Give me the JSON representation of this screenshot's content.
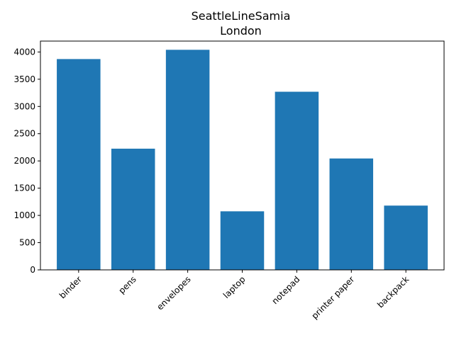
{
  "chart_data": {
    "type": "bar",
    "title": [
      "SeattleLineSamia",
      "London"
    ],
    "xlabel": "",
    "ylabel": "",
    "categories": [
      "binder",
      "pens",
      "envelopes",
      "laptop",
      "notepad",
      "printer paper",
      "backpack"
    ],
    "values": [
      3870,
      2225,
      4040,
      1075,
      3270,
      2045,
      1180
    ],
    "ylim": [
      0,
      4200
    ],
    "yticks": [
      0,
      500,
      1000,
      1500,
      2000,
      2500,
      3000,
      3500,
      4000
    ],
    "bar_color": "#1f77b4",
    "grid": false,
    "legend": "none"
  }
}
